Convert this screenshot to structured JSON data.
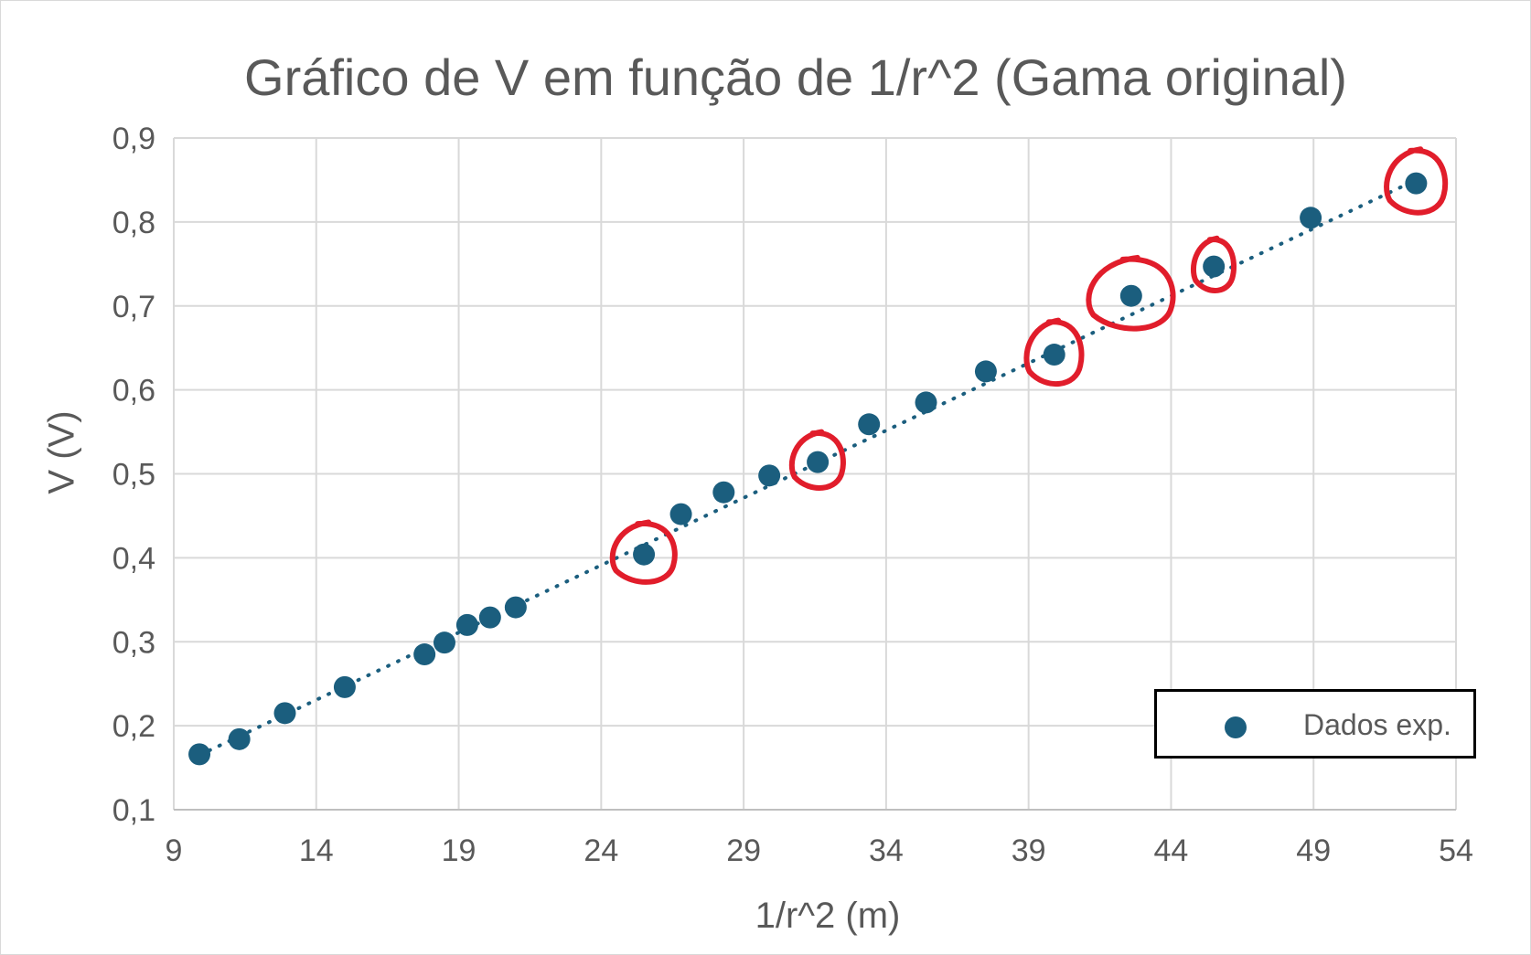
{
  "chart_data": {
    "type": "scatter",
    "title": "Gráfico de V em função de 1/r^2 (Gama original)",
    "xlabel": "1/r^2 (m)",
    "ylabel": "V (V)",
    "xlim": [
      9,
      54
    ],
    "ylim": [
      0.1,
      0.9
    ],
    "x_ticks": [
      "9",
      "14",
      "19",
      "24",
      "29",
      "34",
      "39",
      "44",
      "49",
      "54"
    ],
    "y_ticks": [
      "0,1",
      "0,2",
      "0,3",
      "0,4",
      "0,5",
      "0,6",
      "0,7",
      "0,8",
      "0,9"
    ],
    "grid": true,
    "legend_position": "bottom-right",
    "series": [
      {
        "name": "Dados exp.",
        "color": "#1b5e7e",
        "marker": "circle",
        "trendline": "linear-dotted",
        "x": [
          9.9,
          11.3,
          12.9,
          15.0,
          17.8,
          18.5,
          19.3,
          20.1,
          21.0,
          25.5,
          26.8,
          28.3,
          29.9,
          31.6,
          33.4,
          35.4,
          37.5,
          39.9,
          42.6,
          45.5,
          48.9,
          52.6
        ],
        "y": [
          0.166,
          0.184,
          0.215,
          0.246,
          0.285,
          0.299,
          0.32,
          0.329,
          0.341,
          0.404,
          0.452,
          0.478,
          0.498,
          0.514,
          0.559,
          0.585,
          0.622,
          0.642,
          0.712,
          0.747,
          0.805,
          0.846
        ]
      }
    ],
    "trendline": {
      "x": [
        9.9,
        52.6
      ],
      "y": [
        0.165,
        0.85
      ]
    },
    "annotations": [
      {
        "type": "hand-drawn-circle",
        "color": "#e11d2b",
        "x": 25.5,
        "y": 0.404
      },
      {
        "type": "hand-drawn-circle",
        "color": "#e11d2b",
        "x": 31.6,
        "y": 0.514
      },
      {
        "type": "hand-drawn-circle",
        "color": "#e11d2b",
        "x": 39.9,
        "y": 0.642
      },
      {
        "type": "hand-drawn-circle",
        "color": "#e11d2b",
        "x": 42.6,
        "y": 0.712
      },
      {
        "type": "hand-drawn-circle",
        "color": "#e11d2b",
        "x": 45.5,
        "y": 0.747
      },
      {
        "type": "hand-drawn-circle",
        "color": "#e11d2b",
        "x": 52.6,
        "y": 0.846
      }
    ]
  }
}
